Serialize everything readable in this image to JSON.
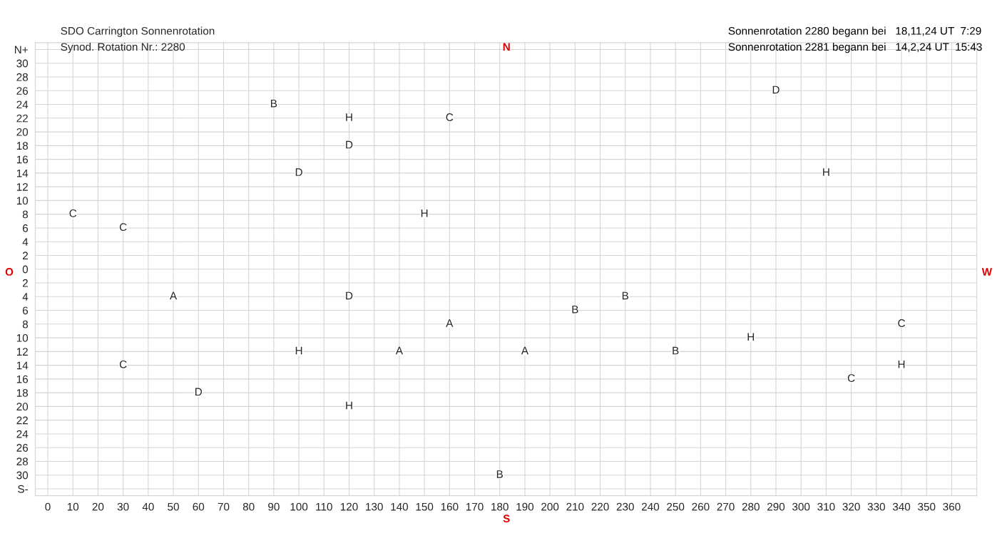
{
  "chart_data": {
    "type": "scatter",
    "title": "SDO Carrington Sonnenrotation",
    "subtitle": "Synod. Rotation Nr.: 2280",
    "annotations": [
      "Sonnenrotation 2280 begann bei   18,11,24 UT  7:29",
      "Sonnenrotation 2281 begann bei   14,2,24 UT  15:43",
      "N",
      "S",
      "O",
      "W"
    ],
    "series": [
      {
        "color": "#ffffff",
        "x": [
          90,
          120,
          160,
          290,
          120,
          100,
          310,
          10,
          150,
          30,
          50,
          120,
          230,
          210,
          160,
          340,
          280,
          100,
          140,
          190,
          250,
          30,
          340,
          320,
          60,
          120,
          180
        ],
        "values": [
          24,
          22,
          22,
          26,
          18,
          14,
          14,
          8,
          8,
          6,
          -4,
          -4,
          -4,
          -6,
          -8,
          -8,
          -10,
          -12,
          -12,
          -12,
          -12,
          -14,
          -14,
          -16,
          -18,
          -20,
          -30
        ],
        "value_labels": [
          "B",
          "H",
          "C",
          "D",
          "D",
          "D",
          "H",
          "C",
          "H",
          "C",
          "A",
          "D",
          "B",
          "B",
          "A",
          "C",
          "H",
          "H",
          "A",
          "A",
          "B",
          "C",
          "H",
          "C",
          "D",
          "H",
          "B"
        ]
      }
    ],
    "marker": "square",
    "grid": true,
    "xlim": [
      -5,
      370
    ],
    "xticks": [
      0,
      10,
      20,
      30,
      40,
      50,
      60,
      70,
      80,
      90,
      100,
      110,
      120,
      130,
      140,
      150,
      160,
      170,
      180,
      190,
      200,
      210,
      220,
      230,
      240,
      250,
      260,
      270,
      280,
      290,
      300,
      310,
      320,
      330,
      340,
      350,
      360
    ],
    "ylim": [
      -33,
      33
    ],
    "yticks": [
      {
        "value": -32,
        "label": "S-"
      },
      {
        "value": -30,
        "label": "30"
      },
      {
        "value": -28,
        "label": "28"
      },
      {
        "value": -26,
        "label": "26"
      },
      {
        "value": -24,
        "label": "24"
      },
      {
        "value": -22,
        "label": "22"
      },
      {
        "value": -20,
        "label": "20"
      },
      {
        "value": -18,
        "label": "18"
      },
      {
        "value": -16,
        "label": "16"
      },
      {
        "value": -14,
        "label": "14"
      },
      {
        "value": -12,
        "label": "12"
      },
      {
        "value": -10,
        "label": "10"
      },
      {
        "value": -8,
        "label": "8"
      },
      {
        "value": -6,
        "label": "6"
      },
      {
        "value": -4,
        "label": "4"
      },
      {
        "value": -2,
        "label": "2"
      },
      0,
      2,
      4,
      6,
      8,
      10,
      12,
      14,
      16,
      18,
      20,
      22,
      24,
      26,
      28,
      30,
      {
        "value": 32,
        "label": "N+"
      }
    ]
  }
}
